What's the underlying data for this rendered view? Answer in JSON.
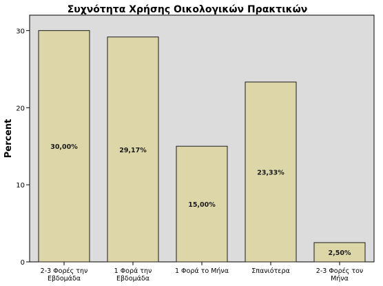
{
  "chart_data": {
    "type": "bar",
    "title": "Συχνότητα Χρήσης Οικολογικών Πρακτικών",
    "xlabel": "",
    "ylabel": "Percent",
    "ylim": [
      0,
      32
    ],
    "yticks": [
      0,
      10,
      20,
      30
    ],
    "categories": [
      [
        "2-3 Φορές την",
        "Εβδομάδα"
      ],
      [
        "1 Φορά την",
        "Εβδομάδα"
      ],
      [
        "1 Φορά το Μήνα"
      ],
      [
        "Σπανιότερα"
      ],
      [
        "2-3 Φορές τον",
        "Μήνα"
      ]
    ],
    "values": [
      30.0,
      29.17,
      15.0,
      23.33,
      2.5
    ],
    "data_labels": [
      "30,00%",
      "29,17%",
      "15,00%",
      "23,33%",
      "2,50%"
    ],
    "grid": false,
    "colors": {
      "bar_fill": "#ddd6a8",
      "bar_stroke": "#1a1a1a",
      "plot_background": "#dcdcdc",
      "axis": "#000000"
    }
  }
}
